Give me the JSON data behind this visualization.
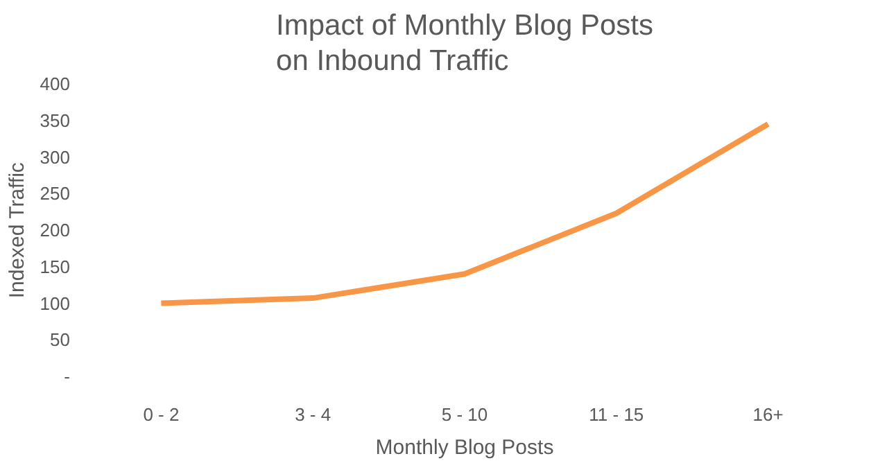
{
  "chart_data": {
    "type": "line",
    "title": "Impact of Monthly Blog Posts\non Inbound Traffic",
    "xlabel": "Monthly Blog Posts",
    "ylabel": "Indexed Traffic",
    "categories": [
      "0 - 2",
      "3 - 4",
      "5 - 10",
      "11 - 15",
      "16+"
    ],
    "series": [
      {
        "color": "#f79646",
        "values": [
          100,
          107,
          140,
          223,
          345
        ]
      }
    ],
    "ylim": [
      0,
      400
    ],
    "yticks": [
      {
        "value": 0,
        "label": "-"
      },
      50,
      100,
      150,
      200,
      250,
      300,
      350,
      400
    ],
    "grid": false,
    "marker": "none",
    "line_style": "solid"
  }
}
